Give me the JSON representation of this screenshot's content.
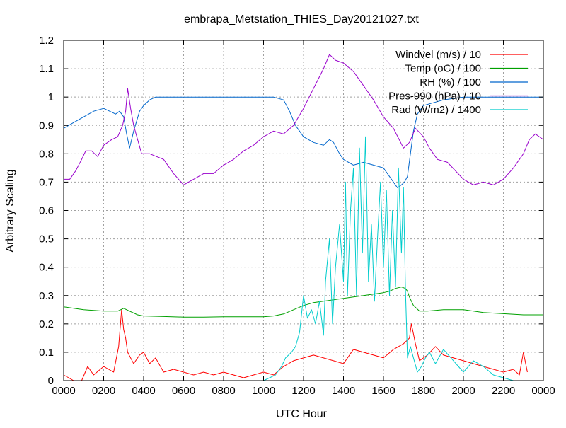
{
  "chart_data": {
    "type": "line",
    "title": "embrapa_Metstation_THIES_Day20121027.txt",
    "xlabel": "UTC Hour",
    "ylabel": "Arbitrary Scaling",
    "xlim": [
      0,
      24
    ],
    "ylim": [
      0,
      1.2
    ],
    "x_tick_labels": [
      "0000",
      "0200",
      "0400",
      "0600",
      "0800",
      "1000",
      "1200",
      "1400",
      "1600",
      "1800",
      "2000",
      "2200",
      "0000"
    ],
    "y_tick_labels": [
      "0",
      "0.1",
      "0.2",
      "0.3",
      "0.4",
      "0.5",
      "0.6",
      "0.7",
      "0.8",
      "0.9",
      "1",
      "1.1",
      "1.2"
    ],
    "grid": true,
    "legend_position": "top-right",
    "series": [
      {
        "name": "Windvel (m/s) / 10",
        "color": "#ff0000",
        "x": [
          0,
          0.5,
          0.9,
          1.2,
          1.5,
          2.0,
          2.5,
          2.75,
          2.9,
          3.0,
          3.1,
          3.2,
          3.5,
          3.8,
          4.0,
          4.3,
          4.6,
          5.0,
          5.5,
          6.0,
          6.5,
          7.0,
          7.5,
          8.0,
          8.5,
          9.0,
          9.5,
          10.0,
          10.5,
          11.0,
          11.5,
          12.0,
          12.5,
          13.0,
          13.5,
          14.0,
          14.5,
          15.0,
          15.5,
          16.0,
          16.5,
          17.0,
          17.3,
          17.4,
          17.6,
          17.8,
          18.2,
          18.6,
          19.0,
          19.5,
          20.0,
          20.5,
          21.0,
          21.5,
          22.0,
          22.5,
          22.8,
          23.0,
          23.2
        ],
        "values": [
          0.02,
          0.0,
          0.0,
          0.05,
          0.02,
          0.05,
          0.03,
          0.12,
          0.25,
          0.18,
          0.15,
          0.1,
          0.06,
          0.09,
          0.1,
          0.06,
          0.08,
          0.03,
          0.04,
          0.03,
          0.02,
          0.03,
          0.02,
          0.03,
          0.02,
          0.01,
          0.02,
          0.03,
          0.02,
          0.05,
          0.07,
          0.08,
          0.09,
          0.08,
          0.07,
          0.06,
          0.11,
          0.1,
          0.09,
          0.08,
          0.11,
          0.13,
          0.15,
          0.2,
          0.13,
          0.07,
          0.09,
          0.12,
          0.09,
          0.08,
          0.07,
          0.06,
          0.05,
          0.04,
          0.03,
          0.04,
          0.02,
          0.1,
          0.03
        ]
      },
      {
        "name": "Temp (oC) / 100",
        "color": "#00a000",
        "x": [
          0,
          1,
          2,
          2.7,
          3.0,
          3.3,
          3.7,
          4.0,
          5,
          6,
          7,
          8,
          9,
          10,
          10.5,
          11,
          11.5,
          12,
          12.5,
          13,
          13.5,
          14,
          14.5,
          15,
          15.5,
          16,
          16.3,
          16.6,
          16.9,
          17.1,
          17.2,
          17.3,
          17.5,
          17.8,
          18.2,
          19,
          20,
          21,
          22,
          23,
          24
        ],
        "values": [
          0.26,
          0.25,
          0.245,
          0.245,
          0.255,
          0.245,
          0.232,
          0.228,
          0.226,
          0.224,
          0.224,
          0.225,
          0.225,
          0.225,
          0.228,
          0.235,
          0.25,
          0.265,
          0.275,
          0.28,
          0.285,
          0.29,
          0.295,
          0.3,
          0.305,
          0.31,
          0.315,
          0.325,
          0.33,
          0.325,
          0.315,
          0.295,
          0.265,
          0.245,
          0.245,
          0.25,
          0.25,
          0.24,
          0.236,
          0.232,
          0.232
        ]
      },
      {
        "name": "RH (%) / 100",
        "color": "#0066cc",
        "x": [
          0,
          0.5,
          1.0,
          1.5,
          2.0,
          2.3,
          2.6,
          2.8,
          3.0,
          3.15,
          3.3,
          3.5,
          3.8,
          4.0,
          4.3,
          4.6,
          5,
          6,
          7,
          8,
          9,
          10,
          10.5,
          11.0,
          11.3,
          11.6,
          12.0,
          12.5,
          13.0,
          13.3,
          13.5,
          13.8,
          14.0,
          14.5,
          15.0,
          15.5,
          16.0,
          16.4,
          16.7,
          16.9,
          17.05,
          17.2,
          17.35,
          17.5,
          17.7,
          18.0,
          18.5,
          19,
          20,
          21,
          22,
          23,
          24
        ],
        "values": [
          0.89,
          0.91,
          0.93,
          0.95,
          0.96,
          0.95,
          0.94,
          0.95,
          0.93,
          0.87,
          0.82,
          0.88,
          0.95,
          0.97,
          0.99,
          1.0,
          1.0,
          1.0,
          1.0,
          1.0,
          1.0,
          1.0,
          1.0,
          0.99,
          0.95,
          0.9,
          0.86,
          0.84,
          0.83,
          0.85,
          0.84,
          0.8,
          0.78,
          0.76,
          0.77,
          0.76,
          0.75,
          0.71,
          0.68,
          0.69,
          0.7,
          0.72,
          0.8,
          0.88,
          0.94,
          0.97,
          0.98,
          0.99,
          1.0,
          1.0,
          1.0,
          1.0,
          1.0
        ]
      },
      {
        "name": "Pres-990 (hPa) / 10",
        "color": "#9900cc",
        "x": [
          0,
          0.3,
          0.6,
          0.9,
          1.1,
          1.4,
          1.7,
          2.0,
          2.4,
          2.7,
          2.95,
          3.1,
          3.2,
          3.35,
          3.5,
          3.7,
          3.9,
          4.3,
          5,
          5.5,
          6,
          6.5,
          7,
          7.5,
          8,
          8.5,
          9,
          9.5,
          10,
          10.5,
          11,
          11.5,
          12,
          12.5,
          13,
          13.3,
          13.6,
          14,
          14.5,
          15,
          15.5,
          16,
          16.5,
          17.0,
          17.3,
          17.6,
          18,
          18.3,
          18.7,
          19.2,
          20,
          20.5,
          21,
          21.5,
          22,
          22.5,
          23,
          23.3,
          23.6,
          24
        ],
        "values": [
          0.71,
          0.71,
          0.74,
          0.78,
          0.81,
          0.81,
          0.79,
          0.83,
          0.85,
          0.86,
          0.9,
          0.95,
          1.03,
          0.96,
          0.9,
          0.85,
          0.8,
          0.8,
          0.78,
          0.73,
          0.69,
          0.71,
          0.73,
          0.73,
          0.76,
          0.78,
          0.81,
          0.83,
          0.86,
          0.88,
          0.87,
          0.9,
          0.96,
          1.03,
          1.1,
          1.15,
          1.13,
          1.12,
          1.09,
          1.04,
          0.99,
          0.93,
          0.89,
          0.82,
          0.84,
          0.89,
          0.86,
          0.82,
          0.78,
          0.77,
          0.71,
          0.69,
          0.7,
          0.69,
          0.71,
          0.75,
          0.8,
          0.85,
          0.87,
          0.85
        ]
      },
      {
        "name": "Rad (W/m2) / 1400",
        "color": "#00cccc",
        "x": [
          0,
          10,
          10.3,
          10.6,
          10.9,
          11.1,
          11.4,
          11.6,
          11.8,
          12.0,
          12.2,
          12.4,
          12.6,
          12.8,
          13.0,
          13.1,
          13.3,
          13.45,
          13.6,
          13.8,
          14.0,
          14.1,
          14.2,
          14.35,
          14.5,
          14.65,
          14.8,
          14.95,
          15.1,
          15.25,
          15.4,
          15.55,
          15.7,
          15.85,
          16.0,
          16.15,
          16.3,
          16.45,
          16.6,
          16.75,
          16.9,
          17.0,
          17.1,
          17.2,
          17.35,
          17.5,
          17.7,
          17.9,
          18.1,
          18.3,
          18.6,
          19.0,
          19.5,
          20.0,
          20.5,
          21.0,
          21.5,
          22.0,
          22.5,
          24
        ],
        "values": [
          0,
          0,
          0.01,
          0.02,
          0.05,
          0.08,
          0.1,
          0.12,
          0.17,
          0.3,
          0.22,
          0.25,
          0.2,
          0.28,
          0.16,
          0.35,
          0.5,
          0.2,
          0.4,
          0.55,
          0.35,
          0.7,
          0.3,
          0.6,
          0.75,
          0.3,
          0.82,
          0.45,
          0.86,
          0.35,
          0.55,
          0.28,
          0.5,
          0.7,
          0.4,
          0.67,
          0.3,
          0.6,
          0.33,
          0.75,
          0.45,
          0.68,
          0.32,
          0.08,
          0.12,
          0.08,
          0.03,
          0.05,
          0.08,
          0.1,
          0.06,
          0.11,
          0.07,
          0.03,
          0.07,
          0.05,
          0.02,
          0.01,
          0.0,
          0.0
        ]
      }
    ]
  }
}
